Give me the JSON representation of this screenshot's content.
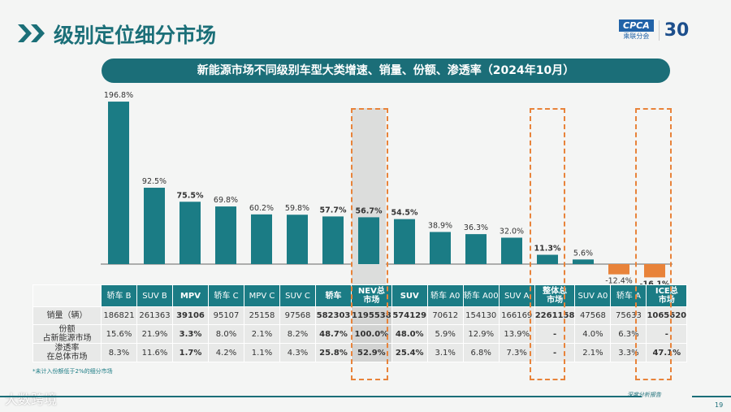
{
  "header": {
    "title": "级别定位细分市场",
    "logo_text": "CPCA",
    "logo_sub": "乘联分会",
    "anniversary": "30"
  },
  "chart_data": {
    "type": "bar",
    "title": "新能源市场不同级别车型大类增速、销量、份额、渗透率（2024年10月）",
    "categories": [
      "轿车 B",
      "SUV B",
      "MPV",
      "轿车 C",
      "MPV C",
      "SUV C",
      "轿车",
      "NEV总市场",
      "SUV",
      "轿车 A0",
      "轿车 A00",
      "SUV A",
      "整体总市场",
      "SUV A0",
      "轿车 A",
      "ICE总市场"
    ],
    "values": [
      196.8,
      92.5,
      75.5,
      69.8,
      60.2,
      59.8,
      57.7,
      56.7,
      54.5,
      38.9,
      36.3,
      32.0,
      11.3,
      5.6,
      -12.4,
      -16.1
    ],
    "labels": [
      "196.8%",
      "92.5%",
      "75.5%",
      "69.8%",
      "60.2%",
      "59.8%",
      "57.7%",
      "56.7%",
      "54.5%",
      "38.9%",
      "36.3%",
      "32.0%",
      "11.3%",
      "5.6%",
      "-12.4%",
      "-16.1%"
    ],
    "bold": [
      false,
      false,
      true,
      false,
      false,
      false,
      true,
      true,
      true,
      false,
      false,
      false,
      true,
      false,
      false,
      true
    ],
    "highlighted": [
      "NEV总市场",
      "整体总市场",
      "ICE总市场"
    ],
    "colors": {
      "positive": "#1b7c85",
      "negative": "#e8833a"
    }
  },
  "table": {
    "headers": [
      "轿车 B",
      "SUV B",
      "MPV",
      "轿车 C",
      "MPV C",
      "SUV C",
      "轿车",
      "NEV总\n市场",
      "SUV",
      "轿车 A0",
      "轿车 A00",
      "SUV A",
      "整体总\n市场",
      "SUV A0",
      "轿车 A",
      "ICE总\n市场"
    ],
    "rows": [
      {
        "label": "销量（辆）",
        "values": [
          "186821",
          "261363",
          "39106",
          "95107",
          "25158",
          "97568",
          "582303",
          "1195538",
          "574129",
          "70612",
          "154130",
          "166169",
          "2261158",
          "47568",
          "75633",
          "1065620"
        ]
      },
      {
        "label": "份额\n占新能源市场",
        "values": [
          "15.6%",
          "21.9%",
          "3.3%",
          "8.0%",
          "2.1%",
          "8.2%",
          "48.7%",
          "100.0%",
          "48.0%",
          "5.9%",
          "12.9%",
          "13.9%",
          "-",
          "4.0%",
          "6.3%",
          "-"
        ]
      },
      {
        "label": "渗透率\n在总体市场",
        "values": [
          "8.3%",
          "11.6%",
          "1.7%",
          "4.2%",
          "1.1%",
          "4.3%",
          "25.8%",
          "52.9%",
          "25.4%",
          "3.1%",
          "6.8%",
          "7.3%",
          "-",
          "2.1%",
          "3.3%",
          "47.1%"
        ]
      }
    ]
  },
  "note": "*未计入份额低于2%的细分市场",
  "footer": {
    "report": "深度分析报告",
    "page": "19",
    "watermark": "大数跨境"
  }
}
